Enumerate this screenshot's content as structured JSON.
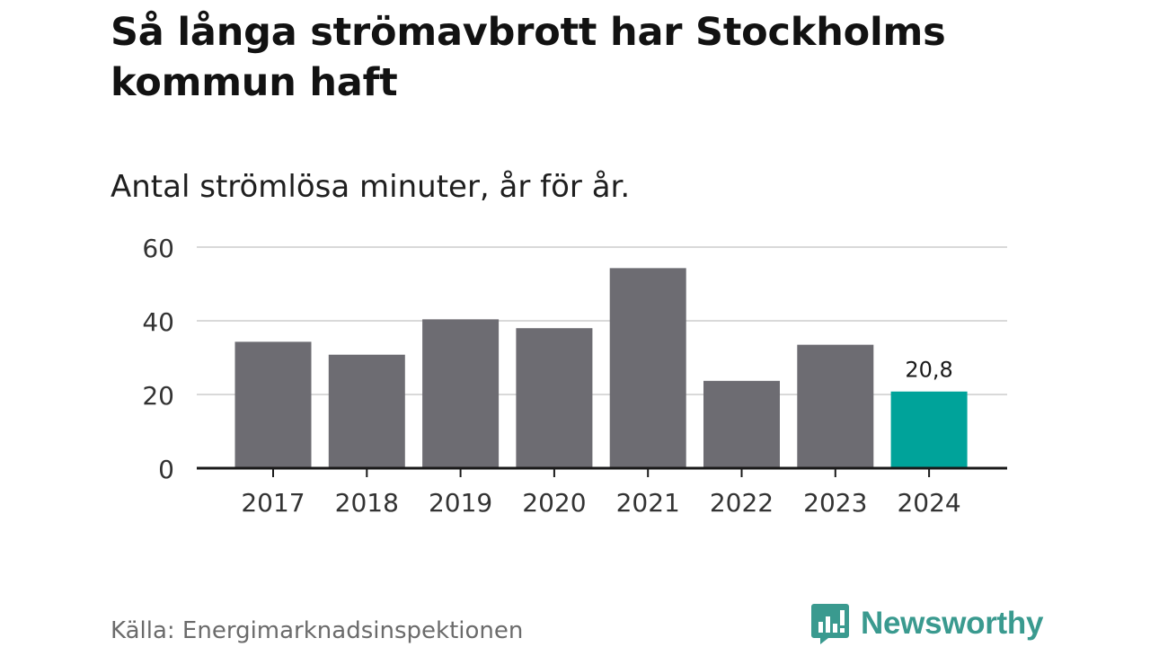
{
  "header": {
    "title": "Så långa strömavbrott har Stockholms kommun haft",
    "subtitle": "Antal strömlösa minuter, år för år."
  },
  "chart_data": {
    "type": "bar",
    "title": "Så långa strömavbrott har Stockholms kommun haft",
    "subtitle": "Antal strömlösa minuter, år för år.",
    "xlabel": "",
    "ylabel": "",
    "categories": [
      "2017",
      "2018",
      "2019",
      "2020",
      "2021",
      "2022",
      "2023",
      "2024"
    ],
    "values": [
      34.3,
      30.8,
      40.4,
      38.0,
      54.3,
      23.7,
      33.5,
      20.8
    ],
    "ylim": [
      0,
      60
    ],
    "yticks": [
      0,
      20,
      40,
      60
    ],
    "grid": true,
    "highlight_index": 7,
    "highlight_label": "20,8",
    "colors": {
      "bar": "#6d6c72",
      "highlight": "#00a39a",
      "grid": "#d9d9d9",
      "axis": "#1a1a1a"
    }
  },
  "footer": {
    "source": "Källa: Energimarknadsinspektionen",
    "brand": "Newsworthy",
    "brand_icon": "bar-chart-speech-bubble-icon",
    "brand_color": "#3a9a8f"
  }
}
